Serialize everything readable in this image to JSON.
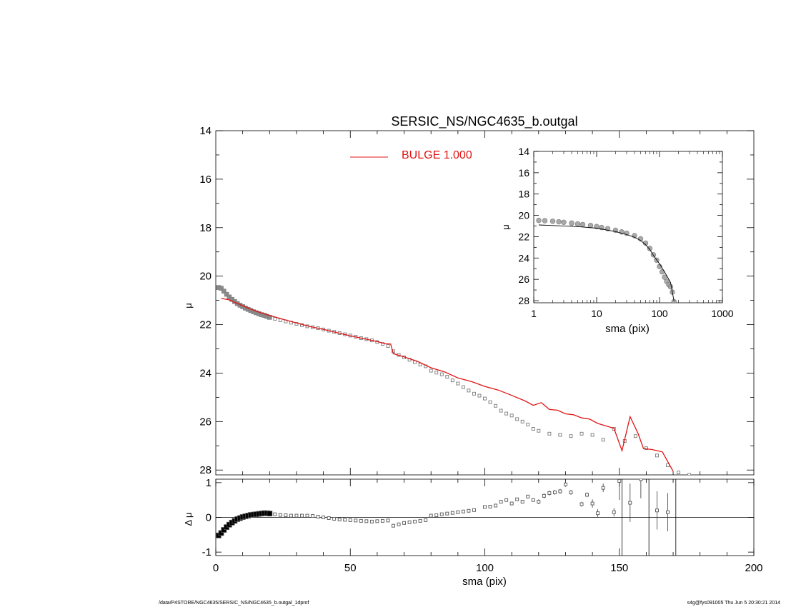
{
  "chart_data": [
    {
      "id": "main",
      "type": "scatter",
      "title": "SERSIC_NS/NGC4635_b.outgal",
      "ylabel": "μ",
      "xlim": [
        0,
        200
      ],
      "ylim": [
        28.2,
        14
      ],
      "y_reversed": true,
      "yticks": [
        "14",
        "16",
        "18",
        "20",
        "22",
        "24",
        "26",
        "28"
      ],
      "grid": false,
      "legend": {
        "placement": "top-center",
        "label": "BULGE  1.000",
        "color": "#e01414"
      },
      "series": [
        {
          "marker": "open-square",
          "color": "#7a7a7a",
          "points": [
            [
              1,
              20.47
            ],
            [
              2,
              20.5
            ],
            [
              3,
              20.62
            ],
            [
              4,
              20.75
            ],
            [
              5,
              20.86
            ],
            [
              6,
              20.96
            ],
            [
              7,
              21.05
            ],
            [
              8,
              21.13
            ],
            [
              9,
              21.2
            ],
            [
              10,
              21.26
            ],
            [
              11,
              21.32
            ],
            [
              12,
              21.37
            ],
            [
              13,
              21.42
            ],
            [
              14,
              21.47
            ],
            [
              15,
              21.51
            ],
            [
              16,
              21.55
            ],
            [
              17,
              21.59
            ],
            [
              18,
              21.62
            ],
            [
              19,
              21.66
            ],
            [
              20,
              21.7
            ],
            [
              22,
              21.76
            ],
            [
              24,
              21.82
            ],
            [
              26,
              21.87
            ],
            [
              28,
              21.92
            ],
            [
              30,
              21.97
            ],
            [
              32,
              22.02
            ],
            [
              34,
              22.07
            ],
            [
              36,
              22.11
            ],
            [
              38,
              22.15
            ],
            [
              40,
              22.2
            ],
            [
              42,
              22.25
            ],
            [
              44,
              22.3
            ],
            [
              46,
              22.35
            ],
            [
              48,
              22.4
            ],
            [
              50,
              22.45
            ],
            [
              52,
              22.5
            ],
            [
              54,
              22.56
            ],
            [
              56,
              22.6
            ],
            [
              58,
              22.65
            ],
            [
              60,
              22.72
            ],
            [
              62,
              22.8
            ],
            [
              64,
              22.88
            ],
            [
              66,
              23.1
            ],
            [
              68,
              23.25
            ],
            [
              70,
              23.35
            ],
            [
              72,
              23.45
            ],
            [
              74,
              23.55
            ],
            [
              76,
              23.65
            ],
            [
              78,
              23.72
            ],
            [
              80,
              23.9
            ],
            [
              82,
              23.98
            ],
            [
              84,
              24.05
            ],
            [
              86,
              24.15
            ],
            [
              88,
              24.3
            ],
            [
              90,
              24.43
            ],
            [
              92,
              24.58
            ],
            [
              94,
              24.72
            ],
            [
              96,
              24.85
            ],
            [
              98,
              24.93
            ],
            [
              100,
              25.05
            ],
            [
              102,
              25.2
            ],
            [
              104,
              25.35
            ],
            [
              106,
              25.55
            ],
            [
              108,
              25.67
            ],
            [
              110,
              25.75
            ],
            [
              112,
              25.9
            ],
            [
              114,
              26.0
            ],
            [
              116,
              26.12
            ],
            [
              118,
              26.3
            ],
            [
              120,
              26.38
            ],
            [
              124,
              26.5
            ],
            [
              128,
              26.55
            ],
            [
              132,
              26.6
            ],
            [
              136,
              26.5
            ],
            [
              140,
              26.55
            ],
            [
              144,
              26.75
            ],
            [
              148,
              26.3
            ],
            [
              152,
              26.8
            ],
            [
              156,
              26.6
            ],
            [
              160,
              27.1
            ],
            [
              164,
              27.4
            ],
            [
              168,
              27.8
            ],
            [
              172,
              28.1
            ],
            [
              176,
              28.2
            ]
          ]
        },
        {
          "name": "BULGE  1.000",
          "type": "line",
          "color": "#e01414",
          "points": [
            [
              2,
              20.92
            ],
            [
              5,
              20.98
            ],
            [
              10,
              21.22
            ],
            [
              15,
              21.45
            ],
            [
              20,
              21.62
            ],
            [
              25,
              21.78
            ],
            [
              30,
              21.93
            ],
            [
              35,
              22.08
            ],
            [
              40,
              22.2
            ],
            [
              45,
              22.33
            ],
            [
              50,
              22.46
            ],
            [
              55,
              22.58
            ],
            [
              60,
              22.7
            ],
            [
              63,
              22.79
            ],
            [
              65,
              22.8
            ],
            [
              66,
              23.2
            ],
            [
              70,
              23.33
            ],
            [
              75,
              23.52
            ],
            [
              80,
              23.78
            ],
            [
              85,
              23.95
            ],
            [
              90,
              24.2
            ],
            [
              95,
              24.35
            ],
            [
              100,
              24.55
            ],
            [
              105,
              24.7
            ],
            [
              110,
              24.92
            ],
            [
              115,
              25.15
            ],
            [
              118,
              25.33
            ],
            [
              121,
              25.22
            ],
            [
              124,
              25.5
            ],
            [
              127,
              25.53
            ],
            [
              130,
              25.68
            ],
            [
              133,
              25.72
            ],
            [
              136,
              25.85
            ],
            [
              139,
              25.9
            ],
            [
              142,
              26.08
            ],
            [
              145,
              26.18
            ],
            [
              148,
              26.28
            ],
            [
              151,
              27.2
            ],
            [
              154,
              25.8
            ],
            [
              157,
              26.5
            ],
            [
              159,
              27.12
            ],
            [
              162,
              27.15
            ],
            [
              166,
              27.25
            ],
            [
              170,
              28.05
            ]
          ]
        }
      ]
    },
    {
      "id": "inset",
      "type": "scatter",
      "xlabel": "sma (pix)",
      "ylabel": "μ",
      "x_scale": "log",
      "xlim": [
        1,
        1000
      ],
      "ylim": [
        28.2,
        14
      ],
      "y_reversed": true,
      "xticks": [
        "1",
        "10",
        "100",
        "1000"
      ],
      "yticks": [
        "14",
        "16",
        "18",
        "20",
        "22",
        "24",
        "26",
        "28"
      ],
      "grid": false,
      "series": [
        {
          "marker": "open-circle",
          "color": "#7a7a7a",
          "points": [
            [
              1.2,
              20.47
            ],
            [
              1.5,
              20.5
            ],
            [
              2,
              20.55
            ],
            [
              2.5,
              20.6
            ],
            [
              3,
              20.65
            ],
            [
              4,
              20.72
            ],
            [
              5,
              20.8
            ],
            [
              6,
              20.86
            ],
            [
              8,
              20.95
            ],
            [
              10,
              21.05
            ],
            [
              12,
              21.14
            ],
            [
              15,
              21.25
            ],
            [
              20,
              21.4
            ],
            [
              25,
              21.55
            ],
            [
              30,
              21.68
            ],
            [
              40,
              21.9
            ],
            [
              50,
              22.2
            ],
            [
              60,
              22.6
            ],
            [
              70,
              23.1
            ],
            [
              80,
              23.7
            ],
            [
              90,
              24.2
            ],
            [
              100,
              24.8
            ],
            [
              110,
              25.3
            ],
            [
              120,
              25.8
            ],
            [
              130,
              26.2
            ],
            [
              140,
              26.5
            ],
            [
              150,
              26.7
            ],
            [
              160,
              27.2
            ],
            [
              170,
              28.1
            ]
          ]
        },
        {
          "type": "line",
          "color": "#000000",
          "points": [
            [
              1.2,
              20.9
            ],
            [
              2,
              20.95
            ],
            [
              5,
              21.05
            ],
            [
              10,
              21.2
            ],
            [
              20,
              21.52
            ],
            [
              30,
              21.8
            ],
            [
              40,
              22.05
            ],
            [
              50,
              22.35
            ],
            [
              60,
              22.75
            ],
            [
              70,
              23.2
            ],
            [
              80,
              23.75
            ],
            [
              100,
              24.55
            ],
            [
              120,
              25.3
            ],
            [
              150,
              26.3
            ],
            [
              170,
              28.05
            ]
          ]
        }
      ]
    },
    {
      "id": "residual",
      "type": "scatter",
      "xlabel": "sma (pix)",
      "ylabel": "Δ μ",
      "xlim": [
        0,
        200
      ],
      "ylim": [
        -1.1,
        1.1
      ],
      "xticks": [
        "0",
        "50",
        "100",
        "150",
        "200"
      ],
      "yticks": [
        "-1",
        "0",
        "1"
      ],
      "grid": false,
      "reference_line": 0,
      "series": [
        {
          "marker": "open-square",
          "color": "#555555",
          "points": [
            [
              1,
              -0.52
            ],
            [
              2,
              -0.45
            ],
            [
              3,
              -0.36
            ],
            [
              4,
              -0.28
            ],
            [
              5,
              -0.21
            ],
            [
              6,
              -0.15
            ],
            [
              7,
              -0.1
            ],
            [
              8,
              -0.05
            ],
            [
              9,
              -0.02
            ],
            [
              10,
              0.01
            ],
            [
              11,
              0.03
            ],
            [
              12,
              0.05
            ],
            [
              13,
              0.07
            ],
            [
              14,
              0.08
            ],
            [
              15,
              0.09
            ],
            [
              16,
              0.1
            ],
            [
              17,
              0.11
            ],
            [
              18,
              0.12
            ],
            [
              19,
              0.12
            ],
            [
              20,
              0.11
            ],
            [
              22,
              0.09
            ],
            [
              24,
              0.07
            ],
            [
              26,
              0.06
            ],
            [
              28,
              0.05
            ],
            [
              30,
              0.05
            ],
            [
              32,
              0.05
            ],
            [
              34,
              0.05
            ],
            [
              36,
              0.04
            ],
            [
              38,
              0.02
            ],
            [
              40,
              0.0
            ],
            [
              42,
              -0.02
            ],
            [
              44,
              -0.04
            ],
            [
              46,
              -0.06
            ],
            [
              48,
              -0.07
            ],
            [
              50,
              -0.08
            ],
            [
              52,
              -0.09
            ],
            [
              54,
              -0.1
            ],
            [
              56,
              -0.11
            ],
            [
              58,
              -0.12
            ],
            [
              60,
              -0.11
            ],
            [
              62,
              -0.1
            ],
            [
              64,
              -0.09
            ],
            [
              66,
              -0.24
            ],
            [
              68,
              -0.2
            ],
            [
              70,
              -0.16
            ],
            [
              72,
              -0.14
            ],
            [
              74,
              -0.12
            ],
            [
              76,
              -0.1
            ],
            [
              78,
              -0.08
            ],
            [
              80,
              0.05
            ],
            [
              82,
              0.06
            ],
            [
              84,
              0.09
            ],
            [
              86,
              0.11
            ],
            [
              88,
              0.13
            ],
            [
              90,
              0.15
            ],
            [
              92,
              0.17
            ],
            [
              94,
              0.19
            ],
            [
              96,
              0.21
            ],
            [
              100,
              0.3
            ],
            [
              102,
              0.31
            ],
            [
              104,
              0.34
            ],
            [
              106,
              0.45
            ],
            [
              108,
              0.5
            ],
            [
              110,
              0.4
            ],
            [
              112,
              0.52
            ],
            [
              114,
              0.45
            ],
            [
              116,
              0.6
            ],
            [
              118,
              0.5
            ],
            [
              120,
              0.45
            ],
            [
              122,
              0.62
            ],
            [
              124,
              0.7
            ],
            [
              126,
              0.72
            ],
            [
              128,
              0.75
            ],
            [
              130,
              0.95
            ],
            [
              132,
              0.72
            ],
            [
              136,
              0.38
            ],
            [
              138,
              0.65
            ],
            [
              140,
              0.4
            ],
            [
              142,
              0.12
            ],
            [
              144,
              0.85
            ],
            [
              148,
              0.15
            ],
            [
              150,
              1.05
            ],
            [
              154,
              0.42
            ],
            [
              158,
              1.1
            ],
            [
              164,
              0.2
            ],
            [
              168,
              0.15
            ]
          ]
        }
      ]
    }
  ],
  "footer": {
    "left": "/data/P4STORE/NGC4635/SERSIC_NS/NGC4635_b.outgal_1dprof",
    "right": "s4g@fys091005  Thu Jun  5 20:30:21 2014"
  }
}
